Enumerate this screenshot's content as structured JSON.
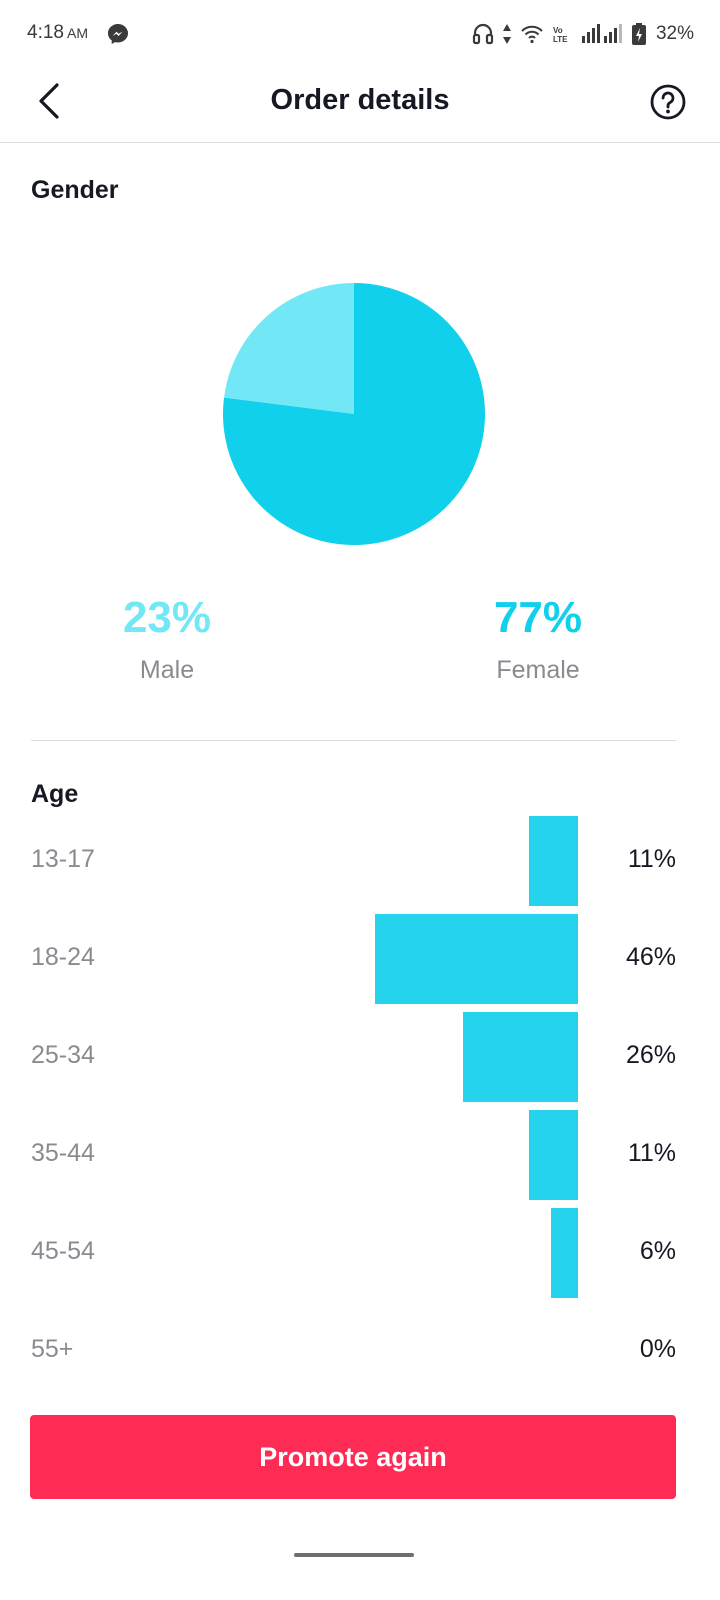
{
  "status_bar": {
    "time": "4:18",
    "ampm": "AM",
    "battery": "32%",
    "volte_label": "Vo LTE",
    "icons": [
      "messenger-icon",
      "headphones-icon",
      "data-arrows-icon",
      "wifi-icon",
      "volte-icon",
      "signal-icon",
      "battery-icon"
    ]
  },
  "header": {
    "title": "Order details",
    "back_icon": "chevron-left-icon",
    "help_icon": "question-circle-icon"
  },
  "gender": {
    "section_title": "Gender",
    "male": {
      "percent_text": "23%",
      "label": "Male",
      "value": 23,
      "color": "#72e8f7"
    },
    "female": {
      "percent_text": "77%",
      "label": "Female",
      "value": 77,
      "color": "#10d0ec"
    }
  },
  "chart_data": [
    {
      "type": "pie",
      "title": "Gender",
      "categories": [
        "Male",
        "Female"
      ],
      "values": [
        23,
        77
      ],
      "colors": [
        "#72e8f7",
        "#10d0ec"
      ]
    },
    {
      "type": "bar",
      "title": "Age",
      "orientation": "horizontal",
      "categories": [
        "13-17",
        "18-24",
        "25-34",
        "35-44",
        "45-54",
        "55+"
      ],
      "values": [
        11,
        46,
        26,
        11,
        6,
        0
      ],
      "labels": [
        "11%",
        "46%",
        "26%",
        "11%",
        "6%",
        "0%"
      ],
      "color": "#25d4ec"
    }
  ],
  "age": {
    "section_title": "Age",
    "rows": [
      {
        "range": "13-17",
        "percent_text": "11%"
      },
      {
        "range": "18-24",
        "percent_text": "46%"
      },
      {
        "range": "25-34",
        "percent_text": "26%"
      },
      {
        "range": "35-44",
        "percent_text": "11%"
      },
      {
        "range": "45-54",
        "percent_text": "6%"
      },
      {
        "range": "55+",
        "percent_text": "0%"
      }
    ]
  },
  "actions": {
    "promote_label": "Promote again",
    "accent_color": "#fe2c55"
  }
}
